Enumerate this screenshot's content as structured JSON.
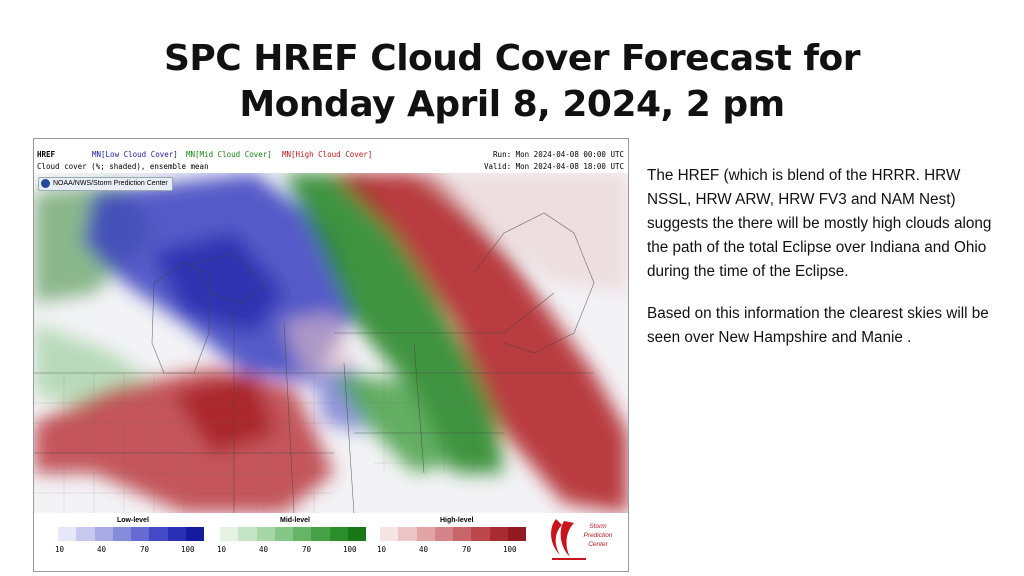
{
  "slide": {
    "title_line1": "SPC HREF Cloud Cover Forecast for",
    "title_line2": "Monday April 8, 2024, 2 pm",
    "paragraph1": "The HREF (which is blend of the HRRR. HRW NSSL, HRW ARW, HRW FV3 and NAM Nest) suggests the there will be mostly high clouds along the path of the total Eclipse over Indiana and Ohio during the time of the Eclipse.",
    "paragraph2": "Based on this information the clearest skies will be seen over New Hampshire and Manie ."
  },
  "map": {
    "label_href": "HREF",
    "label_low": "MN[Low Cloud Cover]",
    "label_mid": "MN[Mid Cloud Cover]",
    "label_high": "MN[High Cloud Cover]",
    "subtitle": "Cloud cover (%; shaded), ensemble mean",
    "run": "Run: Mon 2024-04-08 00:00 UTC",
    "valid": "Valid: Mon 2024-04-08 18:00 UTC",
    "noaa_badge": "NOAA/NWS/Storm Prediction Center",
    "colors": {
      "low": "#2b2fb0",
      "mid": "#2a8a2a",
      "high": "#b0222a"
    }
  },
  "legend": {
    "low_title": "Low-level",
    "mid_title": "Mid-level",
    "high_title": "High-level",
    "ticks": [
      "10",
      "40",
      "70",
      "100"
    ],
    "spc_logo_text": [
      "Storm",
      "Prediction",
      "Center"
    ]
  }
}
